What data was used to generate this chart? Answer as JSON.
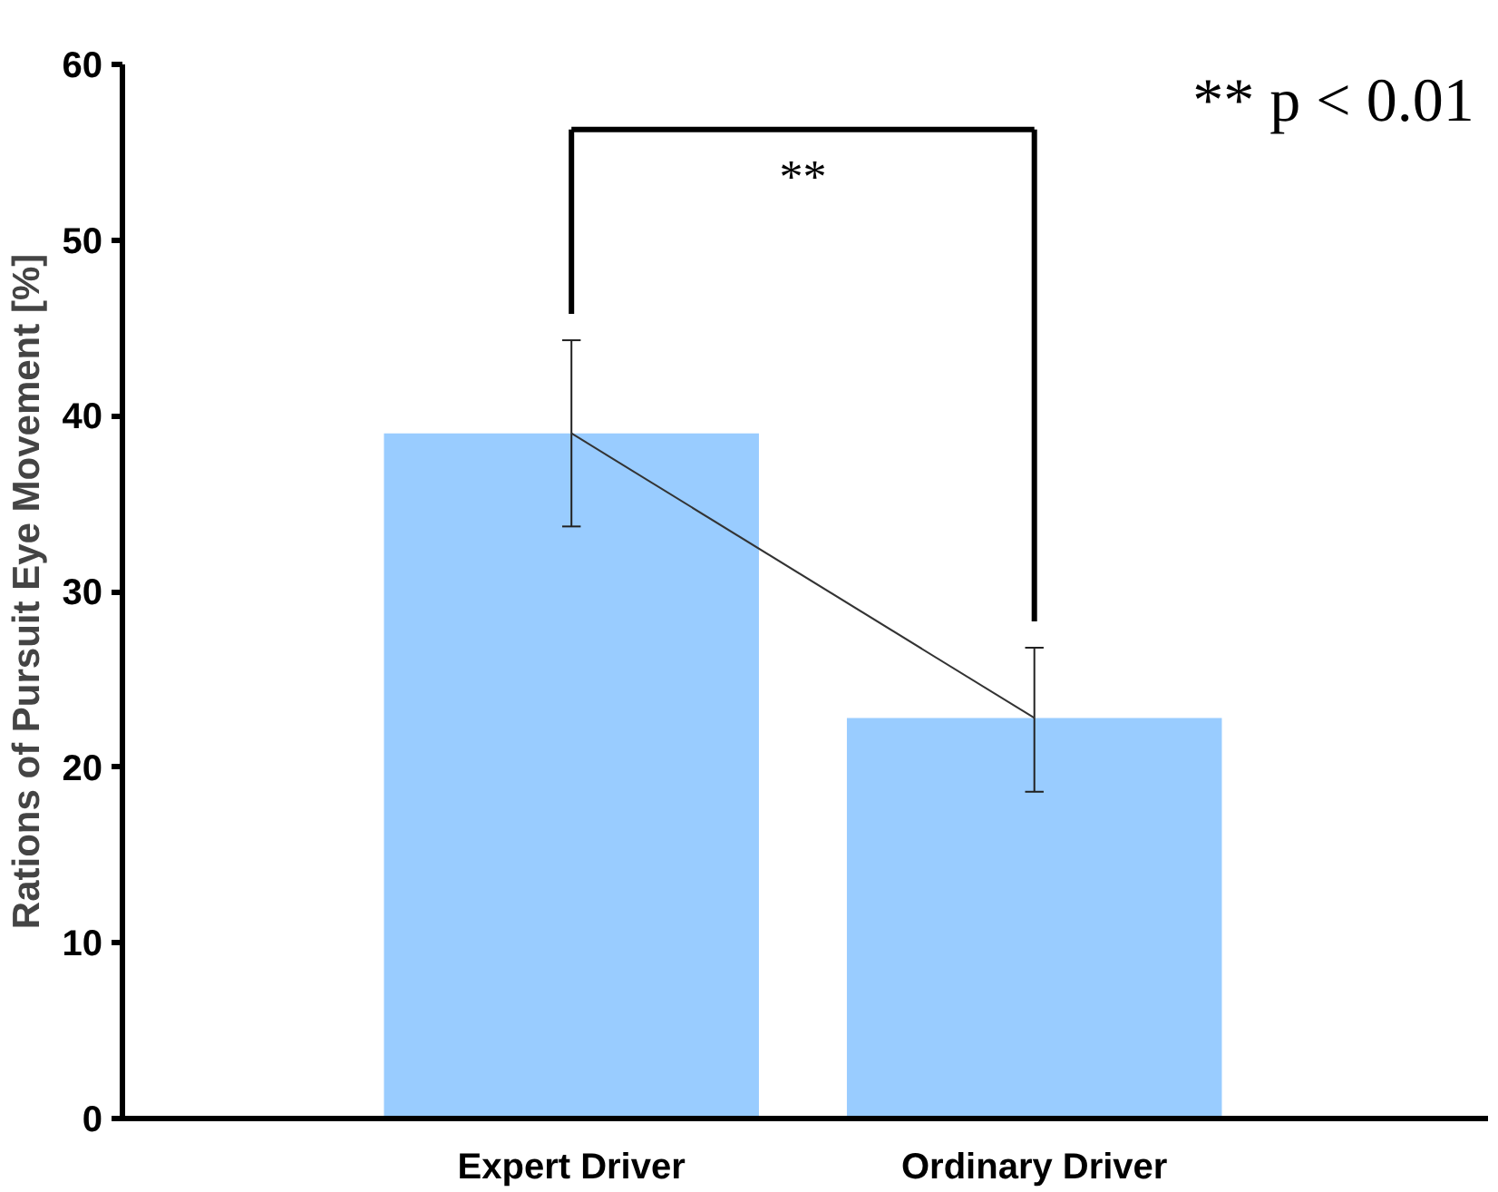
{
  "chart_data": {
    "type": "bar",
    "ylabel": "Rations of Pursuit Eye Movement [%]",
    "categories": [
      "Expert Driver",
      "Ordinary Driver"
    ],
    "series": [
      {
        "color": "#99ccff",
        "values": [
          39,
          22.8
        ],
        "errors": [
          [
            33.7,
            44.3
          ],
          [
            18.6,
            26.8
          ]
        ]
      },
      {
        "type": "line",
        "color": "#333333",
        "values": [
          39,
          22.8
        ]
      }
    ],
    "ylim": [
      0,
      60
    ],
    "yticks": [
      0,
      10,
      20,
      30,
      40,
      50,
      60
    ],
    "grid": false,
    "annotations": [
      "**",
      "** p < 0.01"
    ]
  }
}
